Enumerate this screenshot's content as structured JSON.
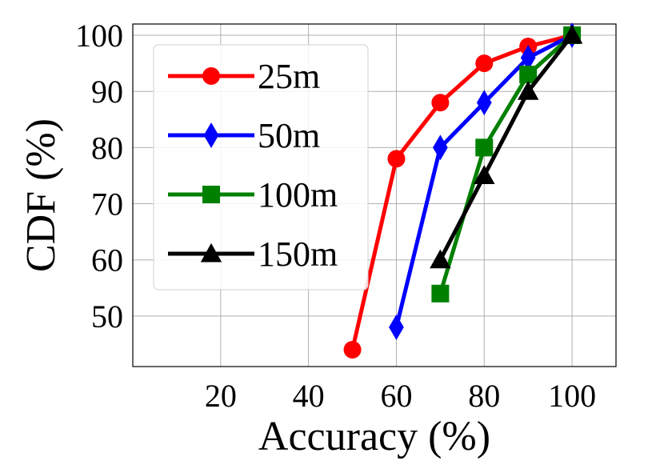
{
  "chart_data": {
    "type": "line",
    "xlabel": "Accuracy (%)",
    "ylabel": "CDF (%)",
    "xlim": [
      0,
      110
    ],
    "ylim": [
      41,
      102
    ],
    "xticks": [
      20,
      40,
      60,
      80,
      100
    ],
    "yticks": [
      50,
      60,
      70,
      80,
      90,
      100
    ],
    "grid": true,
    "legend_position": "upper-left",
    "series": [
      {
        "name": "25m",
        "color": "#ff0000",
        "marker": "circle",
        "x": [
          50,
          60,
          70,
          80,
          90,
          100
        ],
        "y": [
          44,
          78,
          88,
          95,
          98,
          100
        ]
      },
      {
        "name": "50m",
        "color": "#0000ff",
        "marker": "diamond",
        "x": [
          60,
          70,
          80,
          90,
          100
        ],
        "y": [
          48,
          80,
          88,
          96,
          100
        ]
      },
      {
        "name": "100m",
        "color": "#008000",
        "marker": "square",
        "x": [
          70,
          80,
          90,
          100
        ],
        "y": [
          54,
          80,
          93,
          100
        ]
      },
      {
        "name": "150m",
        "color": "#000000",
        "marker": "triangle",
        "x": [
          70,
          80,
          90,
          100
        ],
        "y": [
          60,
          75,
          90,
          100
        ]
      }
    ]
  }
}
